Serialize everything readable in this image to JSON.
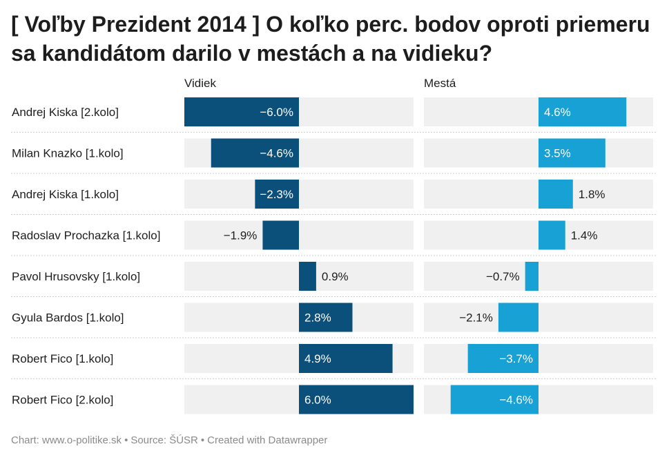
{
  "title": "[ Voľby Prezident 2014 ] O koľko perc. bodov oproti priemeru sa kandidátom darilo v mestách a na vidieku?",
  "chart_data": {
    "type": "bar",
    "orientation": "horizontal",
    "layout": "two-panel split bars",
    "categories": [
      "Andrej Kiska [2.kolo]",
      "Milan Knazko [1.kolo]",
      "Andrej Kiska [1.kolo]",
      "Radoslav Prochazka [1.kolo]",
      "Pavol Hrusovsky [1.kolo]",
      "Gyula Bardos [1.kolo]",
      "Robert Fico [1.kolo]",
      "Robert Fico [2.kolo]"
    ],
    "series": [
      {
        "name": "Vidiek",
        "color": "#0b4f7b",
        "values": [
          -6.0,
          -4.6,
          -2.3,
          -1.9,
          0.9,
          2.8,
          4.9,
          6.0
        ],
        "labels": [
          "−6.0%",
          "−4.6%",
          "−2.3%",
          "−1.9%",
          "0.9%",
          "2.8%",
          "4.9%",
          "6.0%"
        ]
      },
      {
        "name": "Mestá",
        "color": "#18a1d4",
        "values": [
          4.6,
          3.5,
          1.8,
          1.4,
          -0.7,
          -2.1,
          -3.7,
          -4.6
        ],
        "labels": [
          "4.6%",
          "3.5%",
          "1.8%",
          "1.4%",
          "−0.7%",
          "−2.1%",
          "−3.7%",
          "−4.6%"
        ]
      }
    ],
    "xlim": [
      -6.0,
      6.0
    ],
    "unit": "%",
    "background_bar_color": "#f0f0f0",
    "row_separator": "dotted"
  },
  "footer": {
    "credit": "Chart: www.o-politike.sk",
    "source": "Source: ŠÚSR",
    "tool": "Created with Datawrapper",
    "separator": "•"
  }
}
